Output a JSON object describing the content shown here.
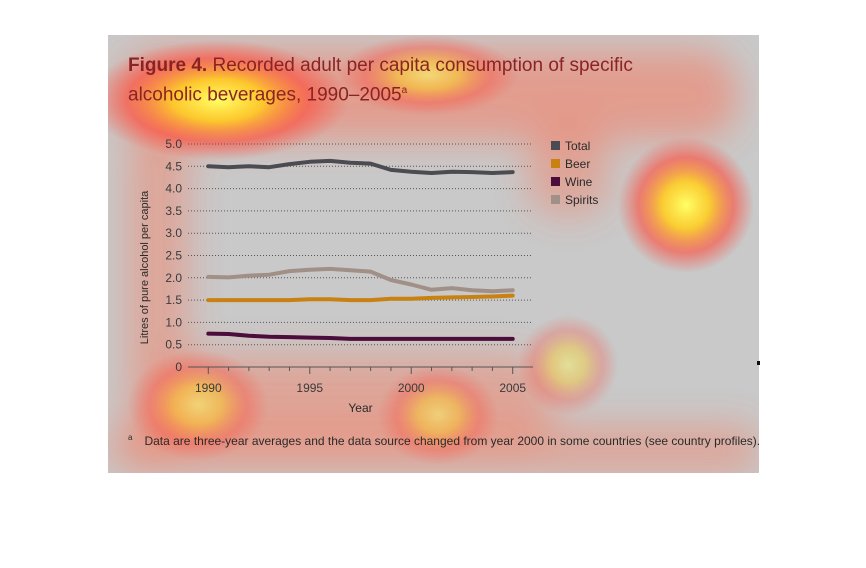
{
  "figure": {
    "label": "Figure 4.",
    "title": "Recorded adult per capita consumption of specific alcoholic beverages, 1990–2005",
    "title_marker": "a",
    "footnote_marker": "a",
    "footnote": "Data are three-year averages and the data source changed from year 2000 in some countries (see country profiles)."
  },
  "chart_data": {
    "type": "line",
    "title": "Recorded adult per capita consumption of specific alcoholic beverages, 1990–2005",
    "xlabel": "Year",
    "ylabel": "Litres of pure alcohol per capita",
    "x": [
      1990,
      1991,
      1992,
      1993,
      1994,
      1995,
      1996,
      1997,
      1998,
      1999,
      2000,
      2001,
      2002,
      2003,
      2004,
      2005
    ],
    "xlim": [
      1989,
      2006
    ],
    "ylim": [
      0,
      5
    ],
    "xticks": [
      1990,
      1995,
      2000,
      2005
    ],
    "xtick_labels": [
      "1990",
      "1995",
      "2000",
      "2005"
    ],
    "yticks": [
      0,
      0.5,
      1,
      1.5,
      2,
      2.5,
      3,
      3.5,
      4,
      4.5,
      5
    ],
    "ytick_labels": [
      "0",
      "0.5",
      "1.0",
      "1.5",
      "2.0",
      "2.5",
      "3.0",
      "3.5",
      "4.0",
      "4.5",
      "5.0"
    ],
    "grid": "horizontal dotted",
    "legend": "right",
    "series": [
      {
        "name": "Total",
        "color": "#4b4b52",
        "values": [
          4.5,
          4.48,
          4.5,
          4.48,
          4.55,
          4.6,
          4.62,
          4.58,
          4.56,
          4.42,
          4.38,
          4.35,
          4.38,
          4.37,
          4.35,
          4.37
        ]
      },
      {
        "name": "Beer",
        "color": "#c98211",
        "values": [
          1.5,
          1.5,
          1.5,
          1.5,
          1.5,
          1.52,
          1.52,
          1.5,
          1.5,
          1.53,
          1.53,
          1.55,
          1.56,
          1.57,
          1.58,
          1.6
        ]
      },
      {
        "name": "Wine",
        "color": "#4a0d3c",
        "values": [
          0.75,
          0.74,
          0.7,
          0.68,
          0.67,
          0.66,
          0.65,
          0.63,
          0.63,
          0.63,
          0.63,
          0.63,
          0.63,
          0.63,
          0.63,
          0.63
        ]
      },
      {
        "name": "Spirits",
        "color": "#a09088",
        "values": [
          2.02,
          2.01,
          2.05,
          2.07,
          2.15,
          2.18,
          2.2,
          2.17,
          2.14,
          1.95,
          1.85,
          1.73,
          1.77,
          1.72,
          1.7,
          1.72
        ]
      }
    ]
  }
}
